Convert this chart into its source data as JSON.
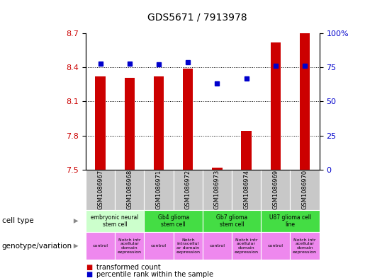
{
  "title": "GDS5671 / 7913978",
  "samples": [
    "GSM1086967",
    "GSM1086968",
    "GSM1086971",
    "GSM1086972",
    "GSM1086973",
    "GSM1086974",
    "GSM1086969",
    "GSM1086970"
  ],
  "transformed_count": [
    8.32,
    8.31,
    8.32,
    8.39,
    7.52,
    7.84,
    8.62,
    8.7
  ],
  "percentile_rank": [
    78,
    78,
    77,
    79,
    63,
    67,
    76,
    76
  ],
  "ylim_left": [
    7.5,
    8.7
  ],
  "ylim_right": [
    0,
    100
  ],
  "yticks_left": [
    7.5,
    7.8,
    8.1,
    8.4,
    8.7
  ],
  "yticks_right": [
    0,
    25,
    50,
    75,
    100
  ],
  "cell_type_groups": [
    {
      "label": "embryonic neural\nstem cell",
      "start": 0,
      "end": 2,
      "color": "#ccffcc"
    },
    {
      "label": "Gb4 glioma\nstem cell",
      "start": 2,
      "end": 4,
      "color": "#44dd44"
    },
    {
      "label": "Gb7 glioma\nstem cell",
      "start": 4,
      "end": 6,
      "color": "#44dd44"
    },
    {
      "label": "U87 glioma cell\nline",
      "start": 6,
      "end": 8,
      "color": "#44dd44"
    }
  ],
  "genotype_groups": [
    {
      "label": "control",
      "start": 0,
      "end": 1,
      "color": "#ee88ee"
    },
    {
      "label": "Notch intr\nacellular\ndomain\nexpression",
      "start": 1,
      "end": 2,
      "color": "#ee88ee"
    },
    {
      "label": "control",
      "start": 2,
      "end": 3,
      "color": "#ee88ee"
    },
    {
      "label": "Notch\nintracellul\nar domain\nexpression",
      "start": 3,
      "end": 4,
      "color": "#ee88ee"
    },
    {
      "label": "control",
      "start": 4,
      "end": 5,
      "color": "#ee88ee"
    },
    {
      "label": "Notch intr\nacellular\ndomain\nexpression",
      "start": 5,
      "end": 6,
      "color": "#ee88ee"
    },
    {
      "label": "control",
      "start": 6,
      "end": 7,
      "color": "#ee88ee"
    },
    {
      "label": "Notch intr\nacellular\ndomain\nexpression",
      "start": 7,
      "end": 8,
      "color": "#ee88ee"
    }
  ],
  "bar_color": "#cc0000",
  "dot_color": "#0000cc",
  "grid_color": "black",
  "label_color_left": "#cc0000",
  "label_color_right": "#0000cc",
  "sample_box_color": "#c8c8c8",
  "legend_items": [
    {
      "color": "#cc0000",
      "label": "transformed count"
    },
    {
      "color": "#0000cc",
      "label": "percentile rank within the sample"
    }
  ]
}
